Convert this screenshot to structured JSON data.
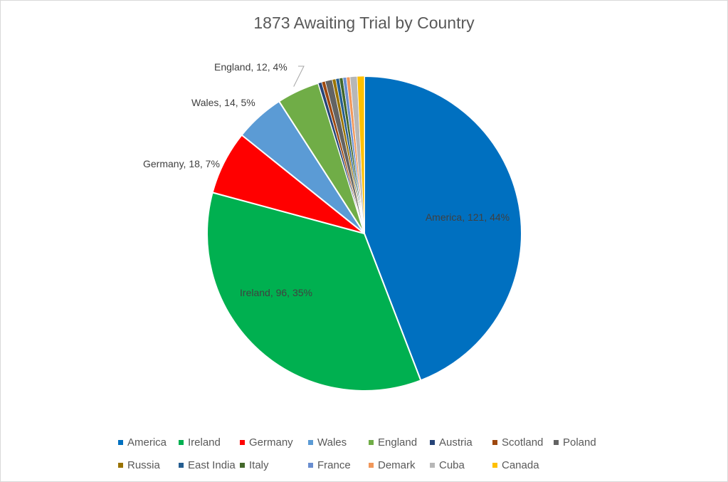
{
  "chart_data": {
    "type": "pie",
    "title": "1873 Awaiting Trial by Country",
    "legend_position": "bottom",
    "slices": [
      {
        "name": "America",
        "value": 121,
        "percent": 44,
        "color": "#0070C0",
        "label": "America, 121, 44%"
      },
      {
        "name": "Ireland",
        "value": 96,
        "percent": 35,
        "color": "#00B050",
        "label": "Ireland, 96, 35%"
      },
      {
        "name": "Germany",
        "value": 18,
        "percent": 7,
        "color": "#FF0000",
        "label": "Germany, 18, 7%"
      },
      {
        "name": "Wales",
        "value": 14,
        "percent": 5,
        "color": "#5B9BD5",
        "label": "Wales, 14, 5%"
      },
      {
        "name": "England",
        "value": 12,
        "percent": 4,
        "color": "#70AD47",
        "label": "England, 12, 4%"
      },
      {
        "name": "Austria",
        "value": 1,
        "color": "#264478",
        "label": ""
      },
      {
        "name": "Scotland",
        "value": 1,
        "color": "#9E480E",
        "label": ""
      },
      {
        "name": "Poland",
        "value": 2,
        "color": "#636363",
        "label": ""
      },
      {
        "name": "Russia",
        "value": 1,
        "color": "#997300",
        "label": ""
      },
      {
        "name": "East India",
        "value": 1,
        "color": "#255E91",
        "label": ""
      },
      {
        "name": "Italy",
        "value": 1,
        "color": "#43682B",
        "label": ""
      },
      {
        "name": "France",
        "value": 1,
        "color": "#698ED0",
        "label": ""
      },
      {
        "name": "Demark",
        "value": 1,
        "color": "#F1975A",
        "label": ""
      },
      {
        "name": "Cuba",
        "value": 2,
        "color": "#B7B7B7",
        "label": ""
      },
      {
        "name": "Canada",
        "value": 2,
        "color": "#FFC000",
        "label": ""
      }
    ],
    "legend_rows": [
      [
        "America",
        "Ireland",
        "Germany",
        "Wales",
        "England",
        "Austria",
        "Scotland",
        "Poland"
      ],
      [
        "Russia",
        "East India",
        "Italy",
        "France",
        "Demark",
        "Cuba",
        "Canada"
      ]
    ]
  }
}
